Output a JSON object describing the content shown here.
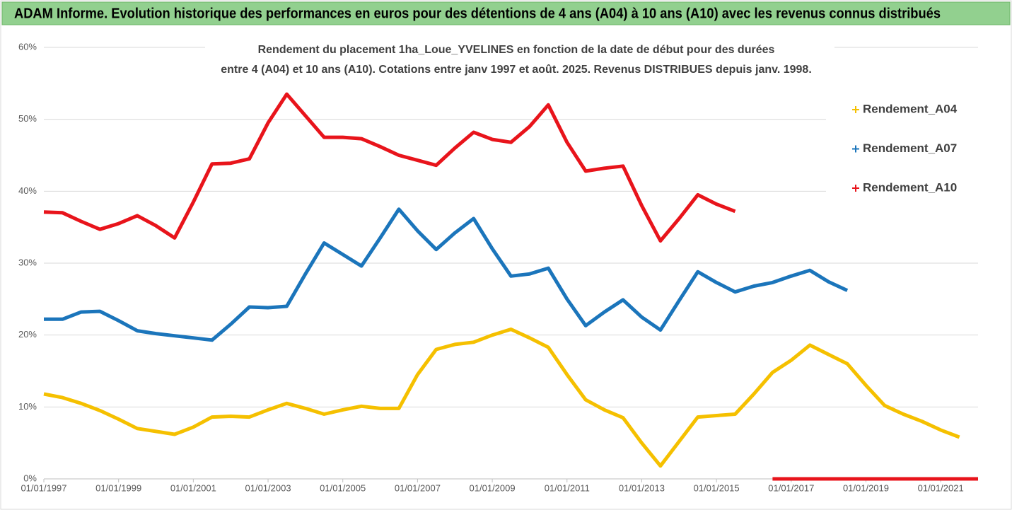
{
  "chart_data": {
    "type": "line",
    "title": "ADAM Informe. Evolution historique des performances en euros pour des détentions de 4 ans (A04) à 10 ans (A10) avec les revenus connus distribués",
    "subtitle": [
      "Rendement du placement 1ha_Loue_YVELINES en fonction de la date de début pour des durées",
      "entre 4 (A04) et 10 ans (A10). Cotations entre janv 1997 et août. 2025. Revenus DISTRIBUES depuis janv. 1998."
    ],
    "x": [
      1997,
      1997.5,
      1998,
      1998.5,
      1999,
      1999.5,
      2000,
      2000.5,
      2001,
      2001.5,
      2002,
      2002.5,
      2003,
      2003.5,
      2004,
      2004.5,
      2005,
      2005.5,
      2006,
      2006.5,
      2007,
      2007.5,
      2008,
      2008.5,
      2009,
      2009.5,
      2010,
      2010.5,
      2011,
      2011.5,
      2012,
      2012.5,
      2013,
      2013.5,
      2014,
      2014.5,
      2015,
      2015.5,
      2016,
      2016.5,
      2017,
      2017.5,
      2018,
      2018.5,
      2019,
      2019.5,
      2020,
      2020.5,
      2021,
      2021.5,
      2022
    ],
    "series": [
      {
        "name": "Rendement_A04",
        "color": "#f5c000",
        "values": [
          11.8,
          11.3,
          10.5,
          9.5,
          8.3,
          7.0,
          6.6,
          6.2,
          7.2,
          8.6,
          8.7,
          8.6,
          9.6,
          10.5,
          9.8,
          9.0,
          9.6,
          10.1,
          9.8,
          9.8,
          14.5,
          18.0,
          18.7,
          19.0,
          20.0,
          20.8,
          19.6,
          18.3,
          14.5,
          11.0,
          9.6,
          8.5,
          5.0,
          1.8,
          5.2,
          8.6,
          8.8,
          9.0,
          11.8,
          14.8,
          16.5,
          18.6,
          17.3,
          16.0,
          13.0,
          10.2,
          9.0,
          8.0,
          6.8,
          5.8,
          null
        ]
      },
      {
        "name": "Rendement_A07",
        "color": "#1b75bb",
        "values": [
          22.2,
          22.2,
          23.2,
          23.3,
          22.0,
          20.6,
          20.2,
          19.9,
          19.6,
          19.3,
          21.5,
          23.9,
          23.8,
          24.0,
          28.5,
          32.8,
          31.2,
          29.6,
          33.5,
          37.5,
          34.5,
          31.9,
          34.2,
          36.2,
          32.0,
          28.2,
          28.5,
          29.3,
          25.0,
          21.3,
          23.2,
          24.9,
          22.5,
          20.7,
          24.8,
          28.8,
          27.3,
          26.0,
          26.8,
          27.3,
          28.2,
          29.0,
          27.4,
          26.2,
          null,
          null,
          null,
          null,
          null,
          null,
          null
        ]
      },
      {
        "name": "Rendement_A10",
        "color": "#e8141b",
        "values": [
          37.1,
          37.0,
          35.8,
          34.7,
          35.5,
          36.6,
          35.2,
          33.5,
          38.5,
          43.8,
          43.9,
          44.5,
          49.5,
          53.5,
          50.5,
          47.5,
          47.5,
          47.3,
          46.2,
          45.0,
          44.3,
          43.6,
          46.0,
          48.2,
          47.2,
          46.8,
          49.0,
          52.0,
          46.8,
          42.8,
          43.2,
          43.5,
          38.0,
          33.1,
          36.2,
          39.5,
          38.2,
          37.2,
          null,
          0,
          0,
          0,
          0,
          0,
          0,
          0,
          0,
          0,
          0,
          0,
          0
        ]
      }
    ],
    "xlim": [
      1997,
      2022
    ],
    "xticks": [
      {
        "value": 1997,
        "label": "01/01/1997"
      },
      {
        "value": 1999,
        "label": "01/01/1999"
      },
      {
        "value": 2001,
        "label": "01/01/2001"
      },
      {
        "value": 2003,
        "label": "01/01/2003"
      },
      {
        "value": 2005,
        "label": "01/01/2005"
      },
      {
        "value": 2007,
        "label": "01/01/2007"
      },
      {
        "value": 2009,
        "label": "01/01/2009"
      },
      {
        "value": 2011,
        "label": "01/01/2011"
      },
      {
        "value": 2013,
        "label": "01/01/2013"
      },
      {
        "value": 2015,
        "label": "01/01/2015"
      },
      {
        "value": 2017,
        "label": "01/01/2017"
      },
      {
        "value": 2019,
        "label": "01/01/2019"
      },
      {
        "value": 2021,
        "label": "01/01/2021"
      }
    ],
    "ylim": [
      0,
      60
    ],
    "yticks": [
      {
        "value": 0,
        "label": "0%"
      },
      {
        "value": 10,
        "label": "10%"
      },
      {
        "value": 20,
        "label": "20%"
      },
      {
        "value": 30,
        "label": "30%"
      },
      {
        "value": 40,
        "label": "40%"
      },
      {
        "value": 50,
        "label": "50%"
      },
      {
        "value": 60,
        "label": "60%"
      }
    ],
    "grid": true,
    "legend": "right"
  }
}
